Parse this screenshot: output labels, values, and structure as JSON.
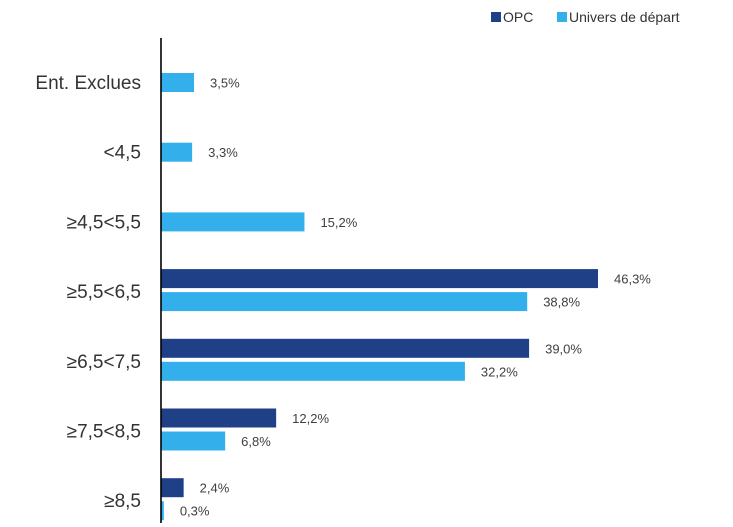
{
  "chart_data": {
    "type": "bar",
    "orientation": "horizontal",
    "categories": [
      "Ent. Exclues",
      "<4,5",
      "≥4,5<5,5",
      "≥5,5<6,5",
      "≥6,5<7,5",
      "≥7,5<8,5",
      "≥8,5"
    ],
    "series": [
      {
        "name": "OPC",
        "color": "#1f3f86",
        "values": [
          null,
          null,
          null,
          46.3,
          39.0,
          12.2,
          2.4
        ],
        "labels": [
          "",
          "",
          "",
          "46,3%",
          "39,0%",
          "12,2%",
          "2,4%"
        ]
      },
      {
        "name": "Univers de départ",
        "color": "#33b0ec",
        "values": [
          3.5,
          3.3,
          15.2,
          38.8,
          32.2,
          6.8,
          0.3
        ],
        "labels": [
          "3,5%",
          "3,3%",
          "15,2%",
          "38,8%",
          "32,2%",
          "6,8%",
          "0,3%"
        ]
      }
    ],
    "xlim": [
      0,
      50
    ],
    "legend_position": "top-right",
    "grid": false,
    "axis_color": "#000000"
  }
}
